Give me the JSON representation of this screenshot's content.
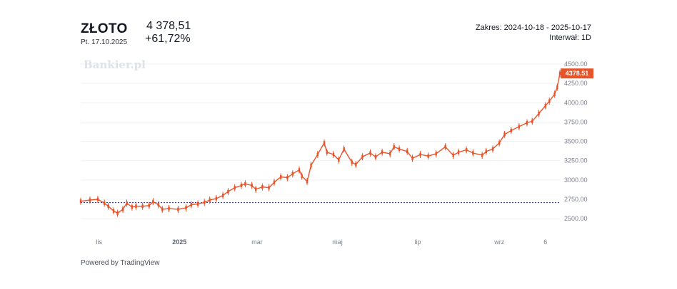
{
  "header": {
    "instrument": "ZŁOTO",
    "date": "Pt. 17.10.2025",
    "price": "4 378,51",
    "change": "+61,72%",
    "range": "Zakres: 2024-10-18 - 2025-10-17",
    "interval": "Interwał: 1D"
  },
  "watermark": "Bankier.pl",
  "footer": "Powered by TradingView",
  "colors": {
    "candle": "#e8542a",
    "baseline": "#1a237e",
    "grid": "#eef0f3",
    "text": "#131722"
  },
  "chart_data": {
    "type": "line",
    "ylim": [
      2400,
      4500
    ],
    "y_ticks": [
      "4500.00",
      "4250.00",
      "4000.00",
      "3750.00",
      "3500.00",
      "3250.00",
      "3000.00",
      "2750.00",
      "2500.00"
    ],
    "x_ticks": [
      {
        "label": "lis",
        "date": "2024-11-01"
      },
      {
        "label": "2025",
        "date": "2025-01-01",
        "bold": true
      },
      {
        "label": "mar",
        "date": "2025-03-01"
      },
      {
        "label": "maj",
        "date": "2025-05-01"
      },
      {
        "label": "lip",
        "date": "2025-07-01"
      },
      {
        "label": "wrz",
        "date": "2025-09-01"
      },
      {
        "label": "6",
        "date": "2025-10-06"
      }
    ],
    "baseline": 2707,
    "last_value_label": "4378.51",
    "series": [
      {
        "values": [
          [
            "2024-10-18",
            2725
          ],
          [
            "2024-10-25",
            2740
          ],
          [
            "2024-10-31",
            2750
          ],
          [
            "2024-11-05",
            2700
          ],
          [
            "2024-11-08",
            2660
          ],
          [
            "2024-11-12",
            2600
          ],
          [
            "2024-11-15",
            2570
          ],
          [
            "2024-11-19",
            2620
          ],
          [
            "2024-11-22",
            2700
          ],
          [
            "2024-11-26",
            2650
          ],
          [
            "2024-11-29",
            2660
          ],
          [
            "2024-12-04",
            2660
          ],
          [
            "2024-12-09",
            2670
          ],
          [
            "2024-12-12",
            2720
          ],
          [
            "2024-12-16",
            2680
          ],
          [
            "2024-12-19",
            2620
          ],
          [
            "2024-12-24",
            2630
          ],
          [
            "2024-12-31",
            2620
          ],
          [
            "2025-01-06",
            2640
          ],
          [
            "2025-01-10",
            2680
          ],
          [
            "2025-01-15",
            2690
          ],
          [
            "2025-01-20",
            2710
          ],
          [
            "2025-01-24",
            2740
          ],
          [
            "2025-01-29",
            2760
          ],
          [
            "2025-02-03",
            2800
          ],
          [
            "2025-02-07",
            2850
          ],
          [
            "2025-02-12",
            2900
          ],
          [
            "2025-02-17",
            2930
          ],
          [
            "2025-02-20",
            2950
          ],
          [
            "2025-02-25",
            2930
          ],
          [
            "2025-02-28",
            2880
          ],
          [
            "2025-03-05",
            2910
          ],
          [
            "2025-03-10",
            2900
          ],
          [
            "2025-03-14",
            2970
          ],
          [
            "2025-03-19",
            3040
          ],
          [
            "2025-03-24",
            3030
          ],
          [
            "2025-03-28",
            3080
          ],
          [
            "2025-04-02",
            3130
          ],
          [
            "2025-04-04",
            3050
          ],
          [
            "2025-04-08",
            2980
          ],
          [
            "2025-04-11",
            3190
          ],
          [
            "2025-04-16",
            3330
          ],
          [
            "2025-04-21",
            3480
          ],
          [
            "2025-04-23",
            3360
          ],
          [
            "2025-04-28",
            3330
          ],
          [
            "2025-05-02",
            3260
          ],
          [
            "2025-05-06",
            3400
          ],
          [
            "2025-05-12",
            3230
          ],
          [
            "2025-05-15",
            3200
          ],
          [
            "2025-05-20",
            3300
          ],
          [
            "2025-05-26",
            3350
          ],
          [
            "2025-05-30",
            3300
          ],
          [
            "2025-06-04",
            3360
          ],
          [
            "2025-06-10",
            3340
          ],
          [
            "2025-06-13",
            3430
          ],
          [
            "2025-06-17",
            3400
          ],
          [
            "2025-06-23",
            3370
          ],
          [
            "2025-06-27",
            3280
          ],
          [
            "2025-07-03",
            3330
          ],
          [
            "2025-07-09",
            3310
          ],
          [
            "2025-07-15",
            3340
          ],
          [
            "2025-07-22",
            3430
          ],
          [
            "2025-07-28",
            3320
          ],
          [
            "2025-08-01",
            3360
          ],
          [
            "2025-08-07",
            3390
          ],
          [
            "2025-08-12",
            3350
          ],
          [
            "2025-08-19",
            3320
          ],
          [
            "2025-08-22",
            3370
          ],
          [
            "2025-08-27",
            3400
          ],
          [
            "2025-09-01",
            3480
          ],
          [
            "2025-09-05",
            3590
          ],
          [
            "2025-09-10",
            3640
          ],
          [
            "2025-09-16",
            3690
          ],
          [
            "2025-09-22",
            3740
          ],
          [
            "2025-09-26",
            3760
          ],
          [
            "2025-10-01",
            3860
          ],
          [
            "2025-10-06",
            3960
          ],
          [
            "2025-10-09",
            4020
          ],
          [
            "2025-10-13",
            4110
          ],
          [
            "2025-10-15",
            4200
          ],
          [
            "2025-10-17",
            4378.51
          ]
        ]
      }
    ]
  }
}
